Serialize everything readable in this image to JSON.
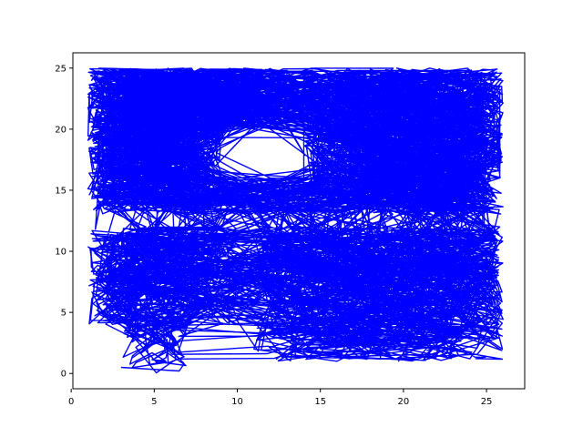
{
  "chart_data": {
    "type": "line",
    "title": "",
    "xlabel": "",
    "ylabel": "",
    "xlim": [
      0.1,
      27.3
    ],
    "ylim": [
      -1.25,
      26.25
    ],
    "x_ticks": [
      0,
      5,
      10,
      15,
      20,
      25
    ],
    "y_ticks": [
      0,
      5,
      10,
      15,
      20,
      25
    ],
    "grid": false,
    "legend": "none",
    "series": [
      {
        "color": "#0000ff",
        "description_of_shape": "dense random-walk trajectory confined to a maze-like region",
        "free_regions": [
          {
            "x": [
              1,
              9
            ],
            "y": [
              13,
              25
            ]
          },
          {
            "x": [
              9,
              13
            ],
            "y": [
              20,
              25
            ]
          },
          {
            "x": [
              1,
              26
            ],
            "y": [
              13,
              16
            ]
          },
          {
            "x": [
              14,
              26
            ],
            "y": [
              16,
              25
            ]
          },
          {
            "x": [
              1,
              10
            ],
            "y": [
              4,
              12
            ]
          },
          {
            "x": [
              11,
              26
            ],
            "y": [
              6,
              12
            ]
          },
          {
            "x": [
              11,
              19
            ],
            "y": [
              1,
              6
            ]
          },
          {
            "x": [
              19,
              26
            ],
            "y": [
              1,
              6
            ]
          },
          {
            "x": [
              3,
              7
            ],
            "y": [
              0,
              4
            ]
          }
        ],
        "path_samples": [
          [
            3.0,
            0.5
          ],
          [
            6.5,
            0.2
          ],
          [
            6.8,
            0.8
          ],
          [
            4.2,
            4.5
          ],
          [
            1.5,
            6.5
          ],
          [
            2.0,
            11.0
          ],
          [
            4.5,
            12.0
          ],
          [
            2.0,
            13.5
          ],
          [
            1.2,
            15.0
          ],
          [
            2.5,
            22.0
          ],
          [
            3.0,
            24.8
          ],
          [
            5.0,
            24.8
          ],
          [
            6.0,
            16.0
          ],
          [
            9.0,
            24.8
          ],
          [
            13.0,
            24.8
          ],
          [
            12.8,
            21.0
          ],
          [
            8.0,
            20.0
          ],
          [
            9.0,
            16.5
          ],
          [
            14.0,
            16.0
          ],
          [
            14.0,
            24.0
          ],
          [
            16.0,
            24.8
          ],
          [
            24.0,
            24.8
          ],
          [
            25.8,
            23.0
          ],
          [
            25.8,
            16.0
          ],
          [
            19.5,
            13.2
          ],
          [
            25.8,
            12.0
          ],
          [
            24.0,
            10.0
          ],
          [
            20.0,
            6.0
          ],
          [
            25.8,
            5.0
          ],
          [
            24.0,
            1.2
          ],
          [
            19.0,
            3.0
          ],
          [
            16.0,
            1.0
          ],
          [
            11.0,
            2.0
          ],
          [
            12.0,
            6.0
          ],
          [
            11.5,
            10.5
          ],
          [
            14.0,
            12.0
          ],
          [
            17.0,
            10.0
          ],
          [
            9.5,
            8.0
          ],
          [
            9.5,
            4.0
          ],
          [
            6.0,
            5.0
          ]
        ]
      }
    ]
  }
}
